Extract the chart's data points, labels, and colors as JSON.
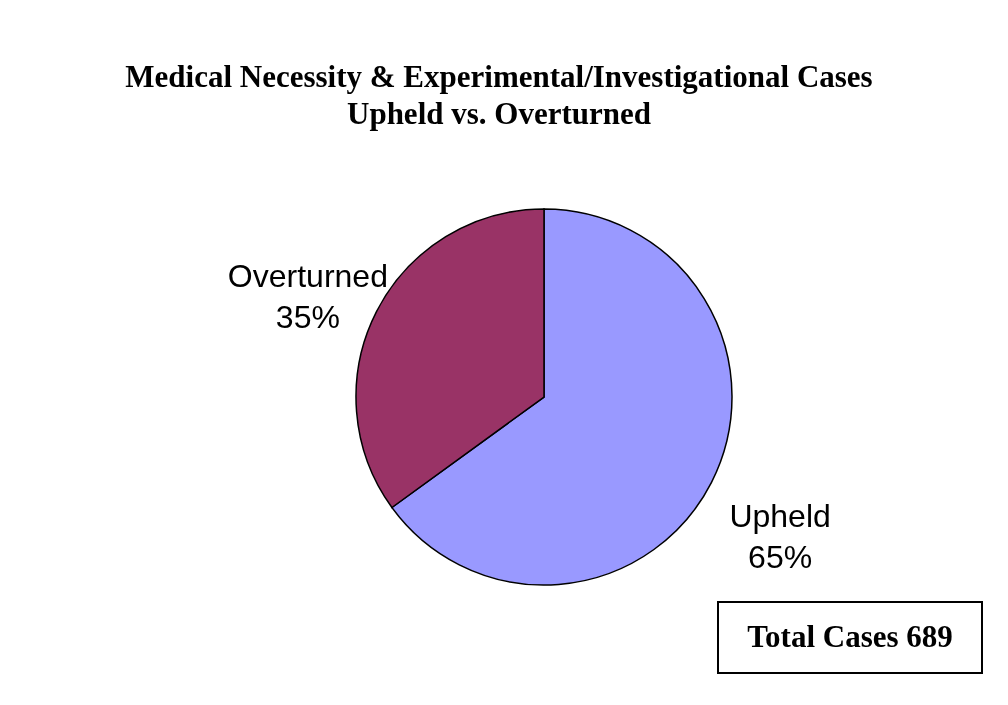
{
  "chart_data": {
    "type": "pie",
    "title": "Medical Necessity & Experimental/Investigational Cases\nUpheld vs. Overturned",
    "categories": [
      "Upheld",
      "Overturned"
    ],
    "values": [
      65,
      35
    ],
    "colors": [
      "#9999ff",
      "#993366"
    ],
    "value_labels": [
      "65%",
      "35%"
    ],
    "annotations": [
      "Total Cases 689"
    ],
    "legend": false
  }
}
